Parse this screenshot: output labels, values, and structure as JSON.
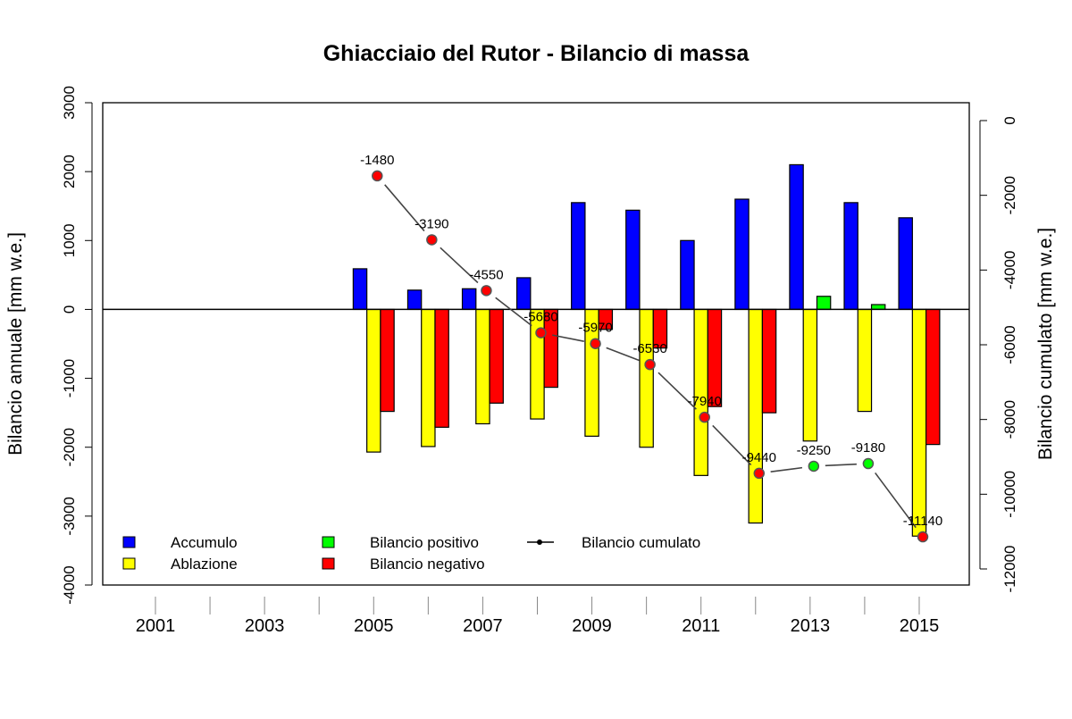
{
  "chart_data": {
    "type": "bar",
    "title": "Ghiacciaio del Rutor - Bilancio di massa",
    "ylabel": "Bilancio annuale [mm w.e.]",
    "y2label": "Bilancio cumulato [mm w.e.]",
    "ylim": [
      -4000,
      3000
    ],
    "yticks": [
      3000,
      2000,
      1000,
      0,
      -1000,
      -2000,
      -3000,
      -4000
    ],
    "y2lim": [
      -12000,
      0
    ],
    "y2ticks": [
      0,
      -2000,
      -4000,
      -6000,
      -8000,
      -10000,
      -12000
    ],
    "xticks": [
      2001,
      2002,
      2003,
      2004,
      2005,
      2006,
      2007,
      2008,
      2009,
      2010,
      2011,
      2012,
      2013,
      2014,
      2015
    ],
    "xticklabels": [
      "2001",
      "2003",
      "2005",
      "2007",
      "2009",
      "2011",
      "2013",
      "2015"
    ],
    "xticklabel_years": [
      2001,
      2003,
      2005,
      2007,
      2009,
      2011,
      2013,
      2015
    ],
    "categories": [
      2005,
      2006,
      2007,
      2008,
      2009,
      2010,
      2011,
      2012,
      2013,
      2014,
      2015
    ],
    "series": [
      {
        "name": "Accumulo",
        "color": "#0000ff",
        "values": [
          590,
          280,
          300,
          460,
          1550,
          1440,
          1000,
          1600,
          2100,
          1550,
          1330
        ]
      },
      {
        "name": "Ablazione",
        "color": "#ffff00",
        "values": [
          -2070,
          -1990,
          -1660,
          -1590,
          -1840,
          -2000,
          -2410,
          -3100,
          -1910,
          -1480,
          -3290
        ]
      },
      {
        "name": "Bilancio annuale",
        "values": [
          -1480,
          -1710,
          -1360,
          -1130,
          -290,
          -560,
          -1410,
          -1500,
          190,
          70,
          -1960
        ]
      }
    ],
    "cumulative": {
      "name": "Bilancio cumulato",
      "axis": "right",
      "values": [
        -1480,
        -3190,
        -4550,
        -5680,
        -5970,
        -6530,
        -7940,
        -9440,
        -9250,
        -9180,
        -11140
      ],
      "labels": [
        "-1480",
        "-3190",
        "-4550",
        "-5680",
        "-5970",
        "-6530",
        "-7940",
        "-9440",
        "-9250",
        "-9180",
        "-11140"
      ]
    },
    "colors": {
      "positive": "#00ff00",
      "negative": "#ff0000",
      "line": "#444444"
    },
    "legend": {
      "position": "bottom-left",
      "items": [
        {
          "label": "Accumulo",
          "type": "box",
          "color": "#0000ff"
        },
        {
          "label": "Ablazione",
          "type": "box",
          "color": "#ffff00"
        },
        {
          "label": "Bilancio positivo",
          "type": "box",
          "color": "#00ff00"
        },
        {
          "label": "Bilancio negativo",
          "type": "box",
          "color": "#ff0000"
        },
        {
          "label": "Bilancio cumulato",
          "type": "line-point",
          "color": "#000000"
        }
      ]
    }
  }
}
